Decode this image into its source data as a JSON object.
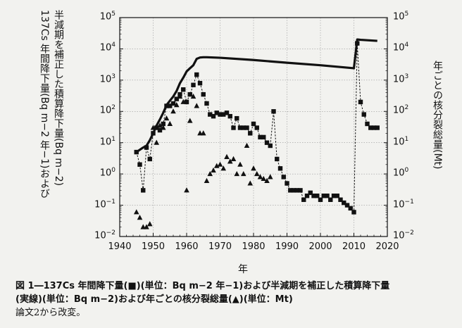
{
  "chart_data": {
    "type": "line",
    "xlabel": "年",
    "ylabel_left_line1": "137Cs 年間降下量(Bq m−2 年−1)および",
    "ylabel_left_line2": "半減期を補正した積算降下量(Bq m−2)",
    "ylabel_right": "年ごとの核分裂総量(Mt)",
    "xlim": [
      1940,
      2020
    ],
    "x_ticks": [
      "1940",
      "1950",
      "1960",
      "1970",
      "1980",
      "1990",
      "2000",
      "2010",
      "2020"
    ],
    "y_left_scale": "log",
    "y_left_lim": [
      0.01,
      100000
    ],
    "y_right_scale": "log",
    "y_right_lim": [
      0.01,
      100000
    ],
    "y_ticks_left": [
      "10−2",
      "10−1",
      "100",
      "101",
      "102",
      "103",
      "104",
      "105"
    ],
    "y_ticks_right": [
      "10−2",
      "10−1",
      "100",
      "101",
      "102",
      "103",
      "104",
      "105"
    ],
    "grid": true,
    "series": [
      {
        "marker": "square",
        "line": "dashed",
        "x": [
          1945,
          1946,
          1947,
          1948,
          1949,
          1950,
          1951,
          1952,
          1953,
          1954,
          1955,
          1956,
          1957,
          1958,
          1959,
          1960,
          1961,
          1962,
          1963,
          1964,
          1965,
          1966,
          1967,
          1968,
          1969,
          1970,
          1971,
          1972,
          1973,
          1974,
          1975,
          1976,
          1977,
          1978,
          1979,
          1980,
          1981,
          1982,
          1983,
          1984,
          1985,
          1986,
          1987,
          1988,
          1989,
          1990,
          1991,
          1992,
          1993,
          1994,
          1995,
          1996,
          1997,
          1998,
          1999,
          2000,
          2001,
          2002,
          2003,
          2004,
          2005,
          2006,
          2007,
          2008,
          2009,
          2010,
          2011,
          2012,
          2013,
          2014,
          2015,
          2016,
          2017
        ],
        "y": [
          5,
          2,
          0.3,
          7,
          3,
          20,
          30,
          25,
          40,
          150,
          150,
          180,
          250,
          350,
          500,
          200,
          350,
          700,
          1500,
          800,
          350,
          180,
          80,
          70,
          90,
          80,
          80,
          90,
          70,
          30,
          60,
          30,
          30,
          30,
          20,
          40,
          30,
          15,
          15,
          10,
          8,
          100,
          3,
          1.5,
          0.8,
          0.5,
          0.3,
          0.3,
          0.3,
          0.3,
          0.15,
          0.2,
          0.25,
          0.2,
          0.2,
          0.15,
          0.2,
          0.2,
          0.15,
          0.2,
          0.2,
          0.15,
          0.12,
          0.1,
          0.08,
          0.06,
          15000,
          200,
          80,
          40,
          30,
          30,
          30
        ]
      },
      {
        "marker": "none",
        "line": "solid",
        "x": [
          1945,
          1947,
          1948,
          1949,
          1950,
          1951,
          1952,
          1953,
          1954,
          1955,
          1956,
          1957,
          1958,
          1959,
          1960,
          1961,
          1962,
          1963,
          1964,
          1965,
          1966,
          1970,
          1980,
          1990,
          2000,
          2010,
          2011,
          2012,
          2017
        ],
        "y": [
          5,
          7,
          8,
          12,
          20,
          35,
          55,
          90,
          160,
          220,
          300,
          450,
          800,
          1200,
          1900,
          2400,
          3000,
          4800,
          5300,
          5400,
          5400,
          5200,
          4400,
          3600,
          3000,
          2400,
          20000,
          19500,
          18000
        ]
      },
      {
        "marker": "triangle",
        "line": "none",
        "x": [
          1945,
          1946,
          1947,
          1948,
          1949,
          1950,
          1951,
          1952,
          1953,
          1954,
          1955,
          1956,
          1957,
          1958,
          1959,
          1960,
          1961,
          1962,
          1963,
          1964,
          1965,
          1966,
          1967,
          1968,
          1969,
          1970,
          1971,
          1972,
          1973,
          1974,
          1975,
          1976,
          1977,
          1978,
          1979,
          1980,
          1981,
          1982,
          1983,
          1984,
          1985
        ],
        "y": [
          0.06,
          0.04,
          0.02,
          0.02,
          0.025,
          30,
          10,
          35,
          30,
          60,
          40,
          100,
          160,
          300,
          200,
          0.3,
          50,
          300,
          150,
          20,
          20,
          0.6,
          1.0,
          1.3,
          1.8,
          2.0,
          1.5,
          3.5,
          2.5,
          3.0,
          1.0,
          2.0,
          1.0,
          8.0,
          0.5,
          1.5,
          1.0,
          0.8,
          0.7,
          0.6,
          0.8
        ]
      }
    ]
  },
  "caption": {
    "line1": "図 1―137Cs 年間降下量(■)(単位：Bq m−2 年−1)および半減期を補正した積算降下量",
    "line2": "(実線)(単位：Bq m−2)および年ごとの核分裂総量(▲)(単位：Mt)",
    "line3": "論文2から改変。"
  }
}
